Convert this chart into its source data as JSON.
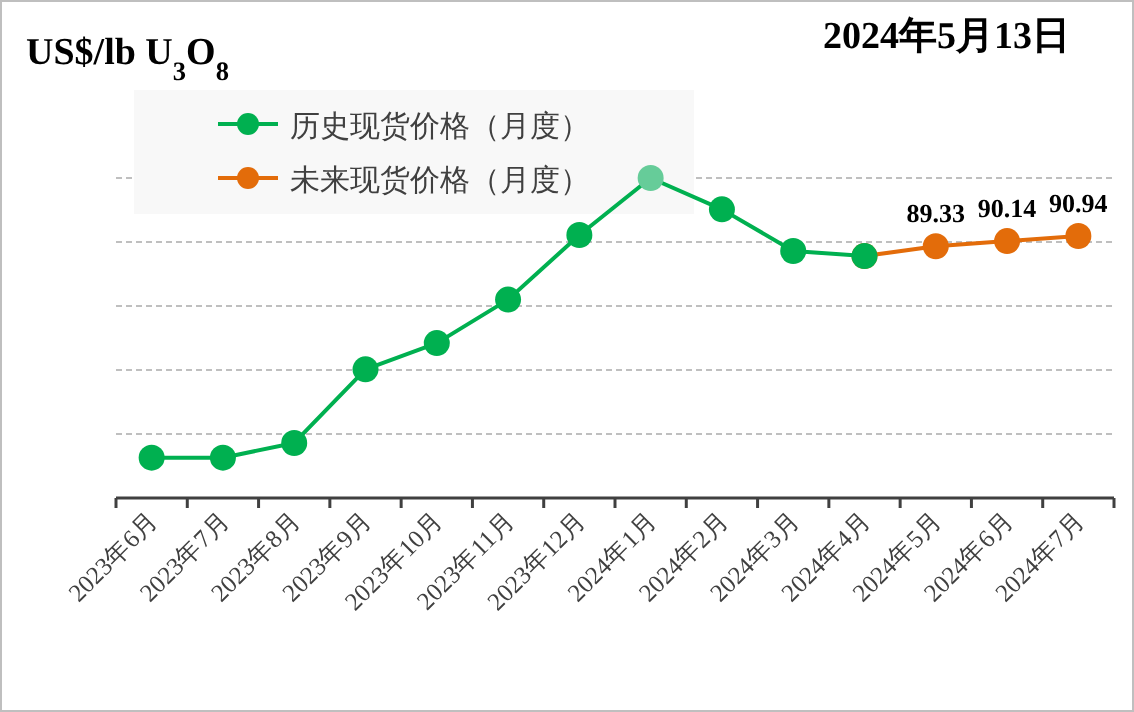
{
  "chart_data": {
    "type": "line",
    "title": "US$/lb U$_{3}$O$_{8}$",
    "subtitle": "2024年5月13日",
    "categories": [
      "2023年6月",
      "2023年7月",
      "2023年8月",
      "2023年9月",
      "2023年10月",
      "2023年11月",
      "2023年12月",
      "2024年1月",
      "2024年2月",
      "2024年3月",
      "2024年4月",
      "2024年5月",
      "2024年6月",
      "2024年7月"
    ],
    "series": [
      {
        "name": "历史现货价格（月度）",
        "color": "#00b050",
        "colors": [
          "#00b050",
          "#00b050",
          "#00b050",
          "#00b050",
          "#00b050",
          "#00b050",
          "#00b050",
          "#66cc99",
          "#00b050",
          "#00b050",
          "#00b050",
          null,
          null,
          null
        ],
        "values": [
          56.3,
          56.3,
          58.6,
          70.1,
          74.2,
          81.0,
          91.1,
          100,
          95.1,
          88.6,
          87.8,
          null,
          null,
          null
        ]
      },
      {
        "name": "未来现货价格（月度）",
        "color": "#e36c0a",
        "values": [
          null,
          null,
          null,
          null,
          null,
          null,
          null,
          null,
          null,
          null,
          87.8,
          89.33,
          90.14,
          90.94
        ],
        "value_labels": [
          null,
          null,
          null,
          null,
          null,
          null,
          null,
          null,
          null,
          null,
          null,
          "89.33",
          "90.14",
          "90.94"
        ]
      }
    ],
    "ylim": [
      50,
      100
    ],
    "yticks": [
      {
        "value": 60,
        "label": null
      },
      {
        "value": 70,
        "label": null
      },
      {
        "value": 80,
        "label": null
      },
      {
        "value": 90,
        "label": null
      },
      {
        "value": 100,
        "label": null
      }
    ],
    "tick_labels": "x",
    "grid": "y",
    "legend": "top left",
    "marker": "circle",
    "line_style": "solid"
  }
}
